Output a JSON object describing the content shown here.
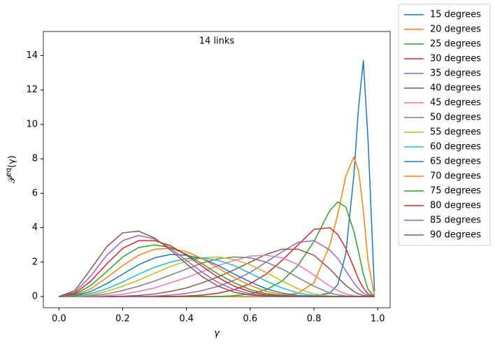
{
  "chart_data": {
    "type": "line",
    "title": "14 links",
    "x_label": "γ",
    "y_label": {
      "base": "𝒫",
      "sup": "eq",
      "tail": "(γ)"
    },
    "xlim": [
      -0.049,
      1.039
    ],
    "ylim": [
      -0.65,
      15.4
    ],
    "xticks": [
      {
        "value": 0,
        "label": "0.0"
      },
      0.2,
      0.4,
      0.6,
      0.8,
      {
        "value": 1,
        "label": "1.0"
      }
    ],
    "yticks": [
      0,
      2,
      4,
      6,
      8,
      10,
      12,
      14
    ],
    "legend": "outside-right",
    "x": [
      0,
      0.05,
      0.1,
      0.15,
      0.2,
      0.25,
      0.3,
      0.35,
      0.4,
      0.45,
      0.5,
      0.55,
      0.6,
      0.65,
      0.7,
      0.75,
      0.8,
      0.85,
      0.875,
      0.9,
      0.925,
      0.94,
      0.955,
      0.97,
      0.99
    ],
    "series": [
      {
        "name": "15 degrees",
        "color": "#1f77b4",
        "values": [
          0,
          0,
          0,
          0,
          0,
          0,
          0,
          0,
          0,
          0,
          0,
          0,
          0,
          0,
          0,
          0,
          0.05,
          0.2,
          0.7,
          2.5,
          7,
          11,
          13.7,
          9,
          0.3
        ]
      },
      {
        "name": "20 degrees",
        "color": "#ff7f0e",
        "values": [
          0,
          0,
          0,
          0,
          0,
          0,
          0,
          0,
          0,
          0,
          0,
          0,
          0,
          0,
          0.05,
          0.2,
          0.8,
          3,
          4.8,
          7,
          8.1,
          7.3,
          5,
          2,
          0.05
        ]
      },
      {
        "name": "25 degrees",
        "color": "#2ca02c",
        "values": [
          0,
          0,
          0,
          0,
          0,
          0,
          0,
          0,
          0,
          0,
          0,
          0.05,
          0.15,
          0.4,
          0.9,
          1.8,
          3.2,
          5,
          5.5,
          5.2,
          3.8,
          2.6,
          1.3,
          0.4,
          0
        ]
      },
      {
        "name": "30 degrees",
        "color": "#d62728",
        "values": [
          0,
          0,
          0,
          0,
          0,
          0,
          0,
          0,
          0.03,
          0.08,
          0.2,
          0.4,
          0.75,
          1.3,
          2.1,
          3.0,
          3.9,
          4.0,
          3.6,
          2.8,
          1.7,
          1.0,
          0.5,
          0.15,
          0
        ]
      },
      {
        "name": "35 degrees",
        "color": "#9467bd",
        "values": [
          0,
          0,
          0,
          0,
          0,
          0,
          0.03,
          0.08,
          0.18,
          0.35,
          0.6,
          0.95,
          1.4,
          2.0,
          2.6,
          3.15,
          3.25,
          2.7,
          2.2,
          1.5,
          0.8,
          0.45,
          0.2,
          0.06,
          0
        ]
      },
      {
        "name": "40 degrees",
        "color": "#8c564b",
        "values": [
          0,
          0,
          0,
          0,
          0.02,
          0.06,
          0.15,
          0.3,
          0.5,
          0.8,
          1.15,
          1.55,
          2.0,
          2.45,
          2.75,
          2.75,
          2.4,
          1.6,
          1.1,
          0.65,
          0.3,
          0.15,
          0.06,
          0.02,
          0
        ]
      },
      {
        "name": "45 degrees",
        "color": "#e377c2",
        "values": [
          0,
          0,
          0.01,
          0.05,
          0.13,
          0.3,
          0.5,
          0.8,
          1.1,
          1.45,
          1.8,
          2.1,
          2.35,
          2.4,
          2.25,
          1.85,
          1.25,
          0.6,
          0.35,
          0.15,
          0.05,
          0.02,
          0,
          0,
          0
        ]
      },
      {
        "name": "50 degrees",
        "color": "#7f7f7f",
        "values": [
          0,
          0.01,
          0.05,
          0.15,
          0.35,
          0.6,
          0.9,
          1.25,
          1.6,
          1.95,
          2.2,
          2.3,
          2.25,
          2.0,
          1.6,
          1.1,
          0.6,
          0.2,
          0.1,
          0.04,
          0.01,
          0,
          0,
          0,
          0
        ]
      },
      {
        "name": "55 degrees",
        "color": "#bcbd22",
        "values": [
          0,
          0.02,
          0.1,
          0.3,
          0.6,
          0.95,
          1.35,
          1.75,
          2.05,
          2.25,
          2.3,
          2.15,
          1.85,
          1.4,
          0.9,
          0.45,
          0.15,
          0.04,
          0.01,
          0,
          0,
          0,
          0,
          0,
          0
        ]
      },
      {
        "name": "60 degrees",
        "color": "#17becf",
        "values": [
          0,
          0.03,
          0.18,
          0.45,
          0.85,
          1.3,
          1.7,
          2.0,
          2.2,
          2.25,
          2.1,
          1.8,
          1.35,
          0.9,
          0.5,
          0.2,
          0.06,
          0.01,
          0,
          0,
          0,
          0,
          0,
          0,
          0
        ]
      },
      {
        "name": "65 degrees",
        "color": "#1f77b4",
        "values": [
          0,
          0.05,
          0.3,
          0.75,
          1.3,
          1.85,
          2.25,
          2.45,
          2.4,
          2.2,
          1.8,
          1.3,
          0.85,
          0.45,
          0.2,
          0.07,
          0.02,
          0,
          0,
          0,
          0,
          0,
          0,
          0,
          0
        ]
      },
      {
        "name": "70 degrees",
        "color": "#ff7f0e",
        "values": [
          0,
          0.08,
          0.45,
          1.1,
          1.8,
          2.4,
          2.75,
          2.8,
          2.6,
          2.2,
          1.65,
          1.1,
          0.65,
          0.3,
          0.12,
          0.03,
          0.01,
          0,
          0,
          0,
          0,
          0,
          0,
          0,
          0
        ]
      },
      {
        "name": "75 degrees",
        "color": "#2ca02c",
        "values": [
          0,
          0.12,
          0.65,
          1.45,
          2.3,
          2.85,
          3.0,
          2.85,
          2.45,
          1.9,
          1.3,
          0.8,
          0.4,
          0.17,
          0.06,
          0.01,
          0,
          0,
          0,
          0,
          0,
          0,
          0,
          0,
          0
        ]
      },
      {
        "name": "80 degrees",
        "color": "#d62728",
        "values": [
          0,
          0.18,
          0.9,
          1.9,
          2.8,
          3.25,
          3.25,
          2.95,
          2.4,
          1.75,
          1.1,
          0.6,
          0.28,
          0.1,
          0.03,
          0.01,
          0,
          0,
          0,
          0,
          0,
          0,
          0,
          0,
          0
        ]
      },
      {
        "name": "85 degrees",
        "color": "#9467bd",
        "values": [
          0,
          0.25,
          1.2,
          2.4,
          3.25,
          3.55,
          3.35,
          2.8,
          2.1,
          1.4,
          0.8,
          0.4,
          0.16,
          0.05,
          0.01,
          0,
          0,
          0,
          0,
          0,
          0,
          0,
          0,
          0,
          0
        ]
      },
      {
        "name": "90 degrees",
        "color": "#8c564b",
        "values": [
          0,
          0.35,
          1.6,
          2.9,
          3.7,
          3.8,
          3.4,
          2.7,
          1.9,
          1.15,
          0.6,
          0.25,
          0.09,
          0.02,
          0,
          0,
          0,
          0,
          0,
          0,
          0,
          0,
          0,
          0,
          0
        ]
      }
    ]
  }
}
